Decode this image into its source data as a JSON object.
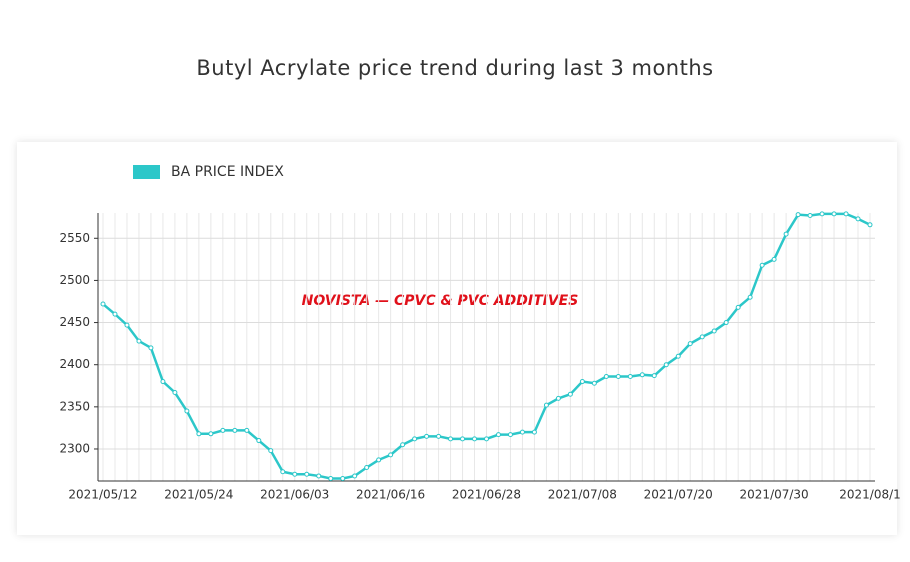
{
  "chart_data": {
    "type": "line",
    "title": "Butyl Acrylate price trend during last 3 months",
    "annotation": "NOVISTA — CPVC & PVC ADDITIVES",
    "categories": [
      "2021/05/12",
      null,
      null,
      null,
      null,
      null,
      null,
      null,
      "2021/05/24",
      null,
      null,
      null,
      null,
      null,
      null,
      null,
      "2021/06/03",
      null,
      null,
      null,
      null,
      null,
      null,
      null,
      "2021/06/16",
      null,
      null,
      null,
      null,
      null,
      null,
      null,
      "2021/06/28",
      null,
      null,
      null,
      null,
      null,
      null,
      null,
      "2021/07/08",
      null,
      null,
      null,
      null,
      null,
      null,
      null,
      "2021/07/20",
      null,
      null,
      null,
      null,
      null,
      null,
      null,
      "2021/07/30",
      null,
      null,
      null,
      null,
      null,
      null,
      null,
      "2021/08/1"
    ],
    "series": [
      {
        "name": "BA PRICE INDEX",
        "color": "#2cc7c9",
        "values": [
          2472,
          2460,
          2447,
          2428,
          2420,
          2380,
          2367,
          2345,
          2318,
          2318,
          2322,
          2322,
          2322,
          2310,
          2298,
          2273,
          2270,
          2270,
          2268,
          2265,
          2265,
          2268,
          2278,
          2287,
          2293,
          2305,
          2312,
          2315,
          2315,
          2312,
          2312,
          2312,
          2312,
          2317,
          2317,
          2320,
          2320,
          2352,
          2360,
          2365,
          2380,
          2378,
          2386,
          2386,
          2386,
          2388,
          2387,
          2400,
          2410,
          2425,
          2433,
          2440,
          2450,
          2468,
          2480,
          2518,
          2525,
          2555,
          2578,
          2577,
          2579,
          2579,
          2579,
          2573,
          2566
        ]
      }
    ],
    "ylim": [
      2262,
      2580
    ],
    "yticks": [
      2300,
      2350,
      2400,
      2450,
      2500,
      2550
    ],
    "grid": true
  }
}
